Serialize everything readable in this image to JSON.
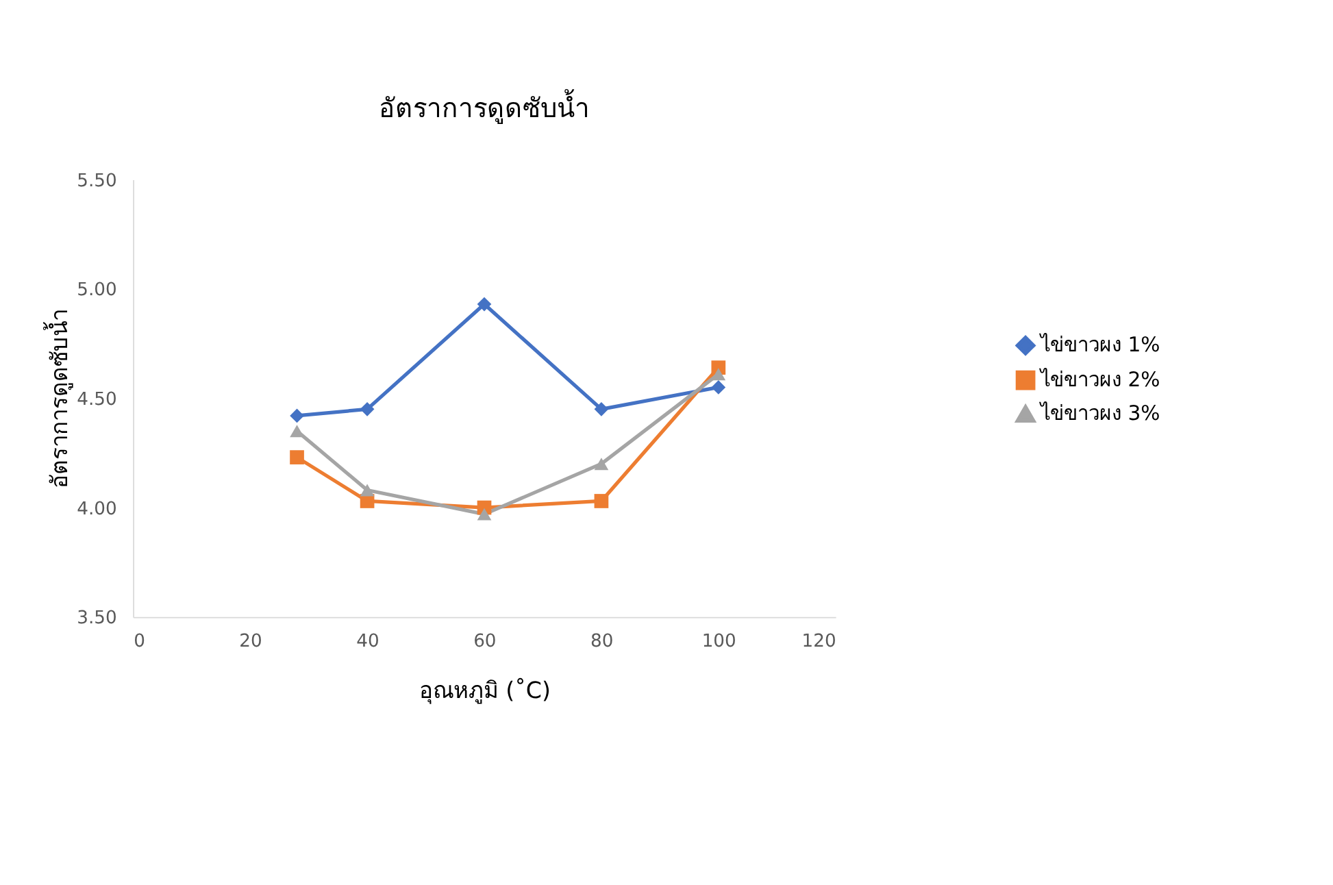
{
  "chart_data": {
    "type": "line",
    "title": "อัตราการดูดซับน้ำ",
    "xlabel": "อุณหภูมิ (˚C)",
    "ylabel": "อัตราการดูดซับน้ำ",
    "x": [
      28,
      40,
      60,
      80,
      100
    ],
    "series": [
      {
        "name": "ไข่ขาวผง 1%",
        "color": "#4472c4",
        "marker": "diamond",
        "values": [
          4.42,
          4.45,
          4.93,
          4.45,
          4.55
        ]
      },
      {
        "name": "ไข่ขาวผง 2%",
        "color": "#ed7d31",
        "marker": "square",
        "values": [
          4.23,
          4.03,
          4.0,
          4.03,
          4.64
        ]
      },
      {
        "name": "ไข่ขาวผง 3%",
        "color": "#a5a5a5",
        "marker": "triangle",
        "values": [
          4.35,
          4.08,
          3.97,
          4.2,
          4.61
        ]
      }
    ],
    "xlim": [
      0,
      120
    ],
    "xticks": [
      0,
      20,
      40,
      60,
      80,
      100,
      120
    ],
    "ylim": [
      3.5,
      5.5
    ],
    "yticks": [
      {
        "value": 3.5,
        "label": "3.50"
      },
      {
        "value": 4,
        "label": "4.00"
      },
      {
        "value": 4.5,
        "label": "4.50"
      },
      {
        "value": 5,
        "label": "5.00"
      },
      {
        "value": 5.5,
        "label": "5.50"
      }
    ],
    "grid": false,
    "legend": "right",
    "line_style": "solid"
  }
}
